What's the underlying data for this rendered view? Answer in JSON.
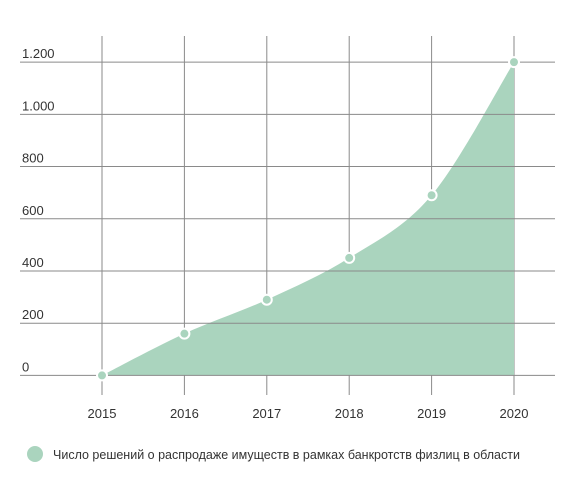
{
  "chart_data": {
    "type": "area",
    "categories": [
      "2015",
      "2016",
      "2017",
      "2018",
      "2019",
      "2020"
    ],
    "series": [
      {
        "name": "Число решений о распродаже имуществ в рамках банкротств физлиц в области",
        "color": "#aad4be",
        "values": [
          0,
          160,
          290,
          450,
          690,
          1200
        ]
      }
    ],
    "ylim": [
      -75,
      1300
    ],
    "yticks": [
      0,
      200,
      400,
      600,
      800,
      {
        "value": 1000,
        "label": "1.000"
      },
      {
        "value": 1200,
        "label": "1.200"
      }
    ],
    "grid": true
  }
}
